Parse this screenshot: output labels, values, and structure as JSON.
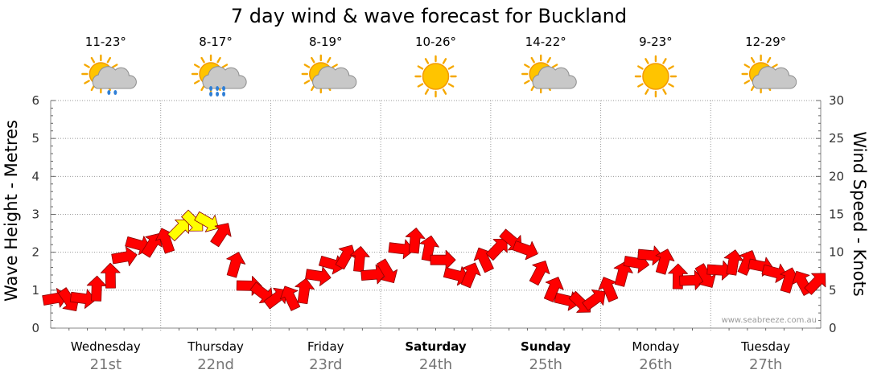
{
  "chart_data": {
    "type": "line",
    "title": "7 day wind & wave forecast for Buckland",
    "ylabel_left": "Wave Height - Metres",
    "ylabel_right": "Wind Speed - Knots",
    "ylim_left": [
      0,
      6
    ],
    "ylim_right": [
      0,
      30
    ],
    "yticks_left": [
      "0",
      "1",
      "2",
      "3",
      "4",
      "5",
      "6"
    ],
    "yticks_right": [
      "0",
      "5",
      "10",
      "15",
      "20",
      "25",
      "30"
    ],
    "credit": "www.seabreeze.com.au",
    "days": [
      {
        "name": "Wednesday",
        "date": "21st",
        "temp": "11-23°",
        "icon": "sun-cloud-rain-icon",
        "bold": false
      },
      {
        "name": "Thursday",
        "date": "22nd",
        "temp": "8-17°",
        "icon": "sun-cloud-heavy-rain-icon",
        "bold": false
      },
      {
        "name": "Friday",
        "date": "23rd",
        "temp": "8-19°",
        "icon": "sun-cloud-icon",
        "bold": false
      },
      {
        "name": "Saturday",
        "date": "24th",
        "temp": "10-26°",
        "icon": "sun-icon",
        "bold": true
      },
      {
        "name": "Sunday",
        "date": "25th",
        "temp": "14-22°",
        "icon": "sun-cloud-icon",
        "bold": true
      },
      {
        "name": "Monday",
        "date": "26th",
        "temp": "9-23°",
        "icon": "sun-icon",
        "bold": false
      },
      {
        "name": "Tuesday",
        "date": "27th",
        "temp": "12-29°",
        "icon": "sun-cloud-icon",
        "bold": false
      }
    ],
    "wind_series": {
      "name": "Wind Speed",
      "unit": "knots",
      "x_days": [
        0,
        0.25,
        0.5,
        0.75,
        1,
        1.25,
        1.5,
        1.75,
        2,
        2.25,
        2.5,
        2.75,
        3,
        3.25,
        3.5,
        3.75,
        4,
        4.25,
        4.5,
        4.75,
        5,
        5.25,
        5.5,
        5.75,
        6,
        6.25,
        6.5,
        6.75,
        7
      ],
      "values": [
        4,
        3.5,
        6,
        11,
        11,
        14,
        14,
        6,
        4,
        4,
        8,
        10,
        6,
        12,
        10,
        6,
        10,
        12,
        6,
        3,
        4,
        8,
        10,
        6,
        7,
        9,
        8,
        6,
        6
      ]
    },
    "arrow_colors": {
      "normal": "#ff0000",
      "strong": "#ffff00",
      "outline": "#8b0000"
    }
  }
}
